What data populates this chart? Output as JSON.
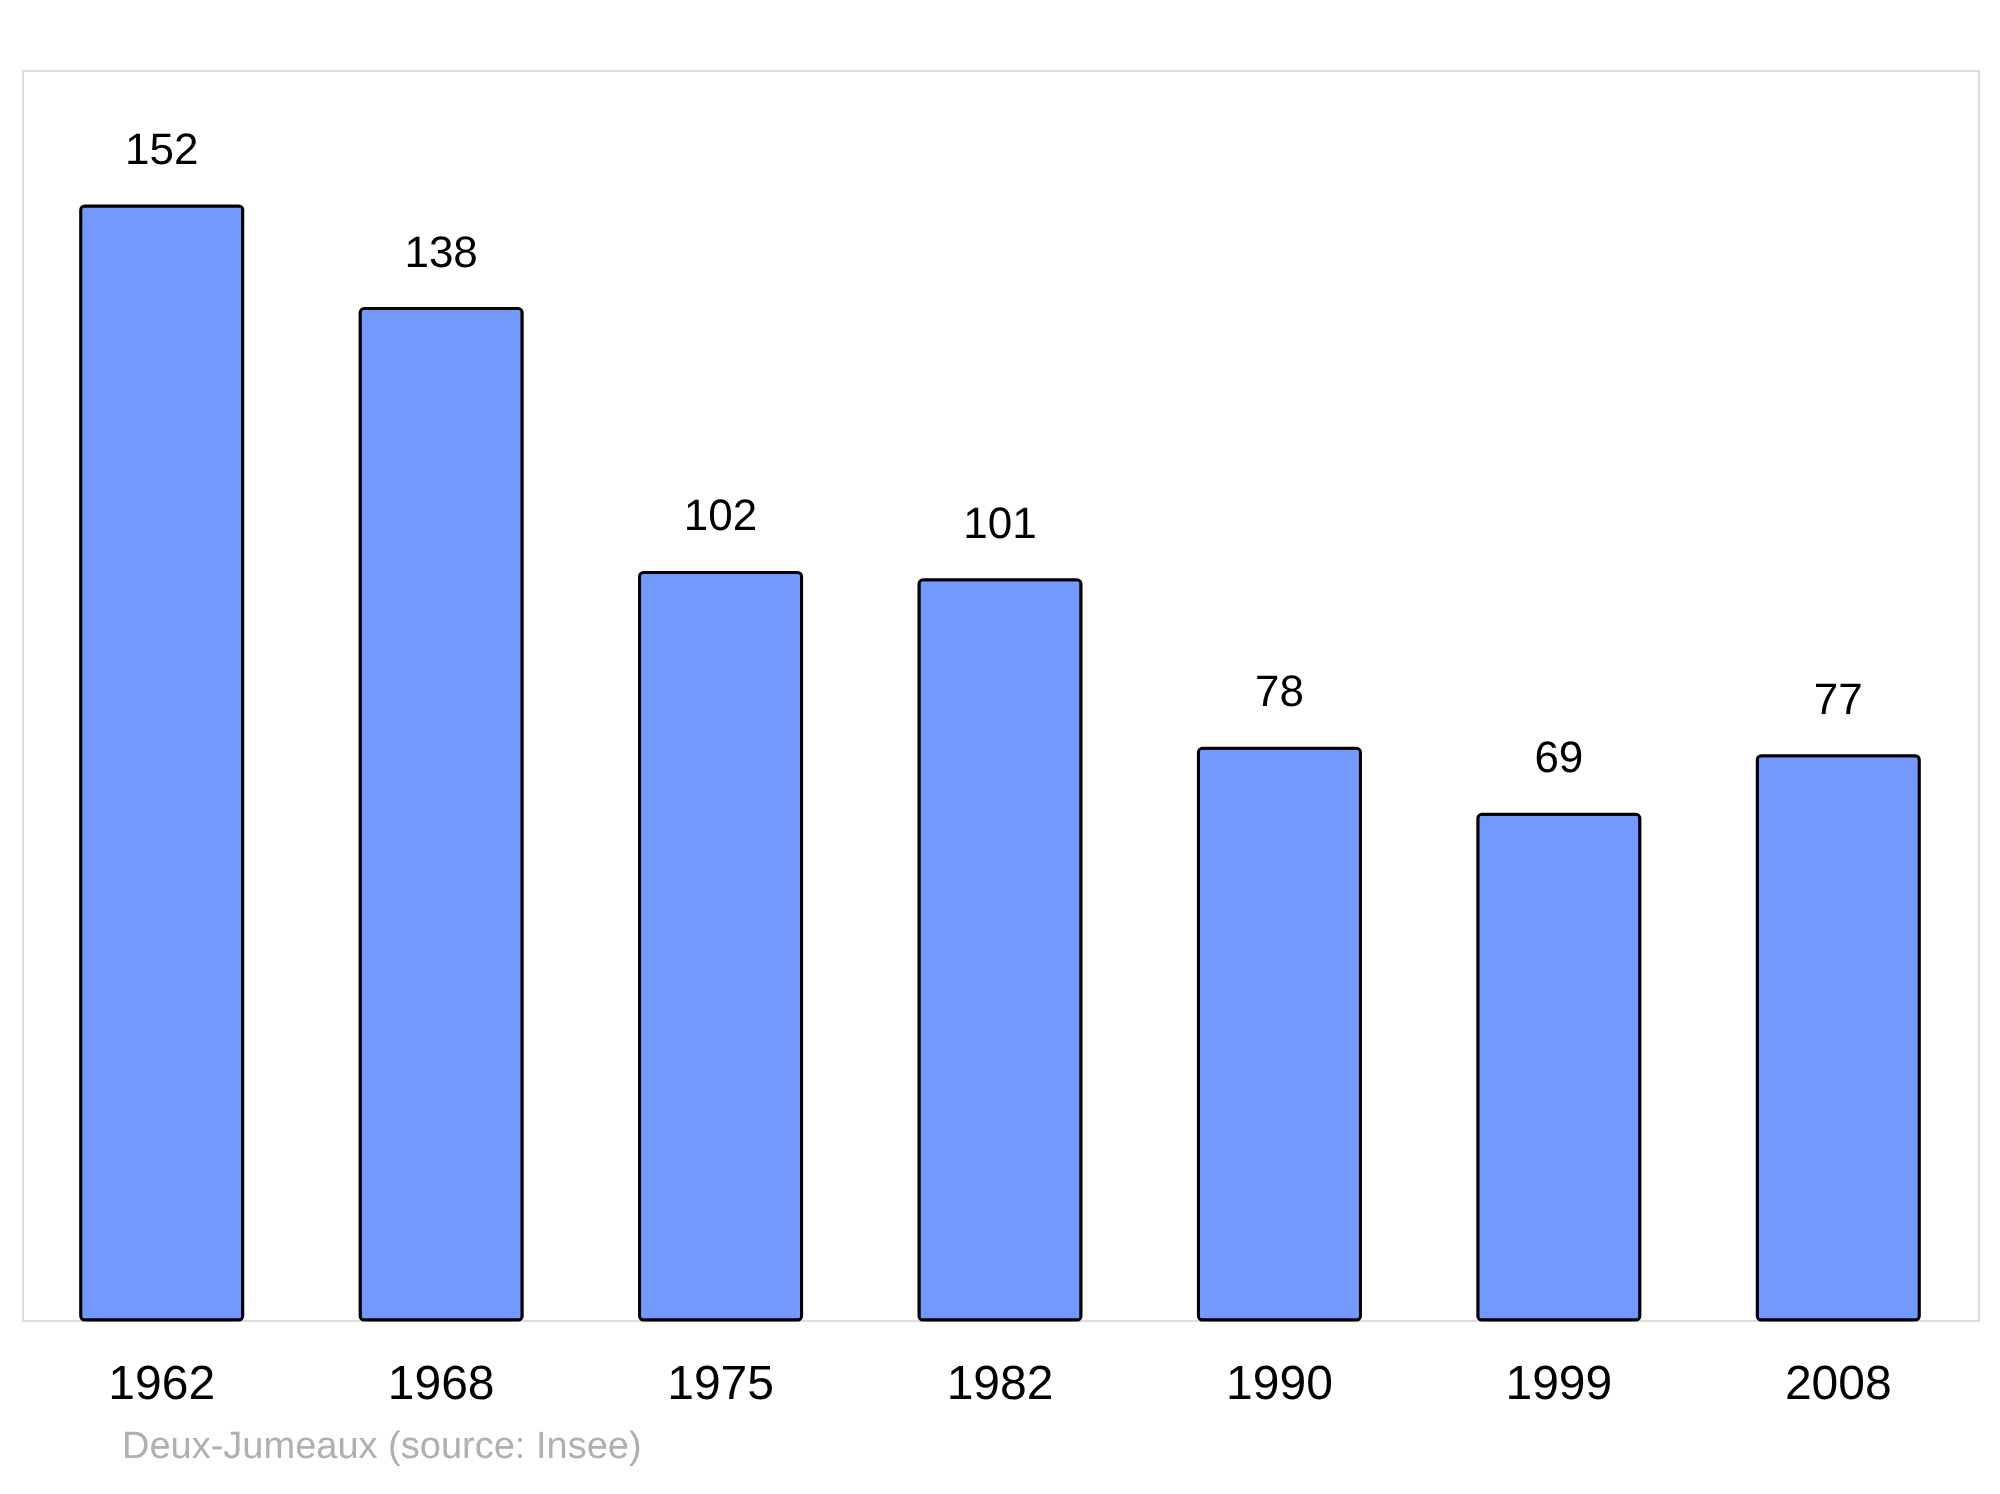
{
  "chart_data": {
    "type": "bar",
    "categories": [
      "1962",
      "1968",
      "1975",
      "1982",
      "1990",
      "1999",
      "2008"
    ],
    "values": [
      152,
      138,
      102,
      101,
      78,
      69,
      77
    ],
    "color": "#7399ff",
    "data_labels": true,
    "annotations": [
      "Deux-Jumeaux    (source: Insee)"
    ]
  }
}
